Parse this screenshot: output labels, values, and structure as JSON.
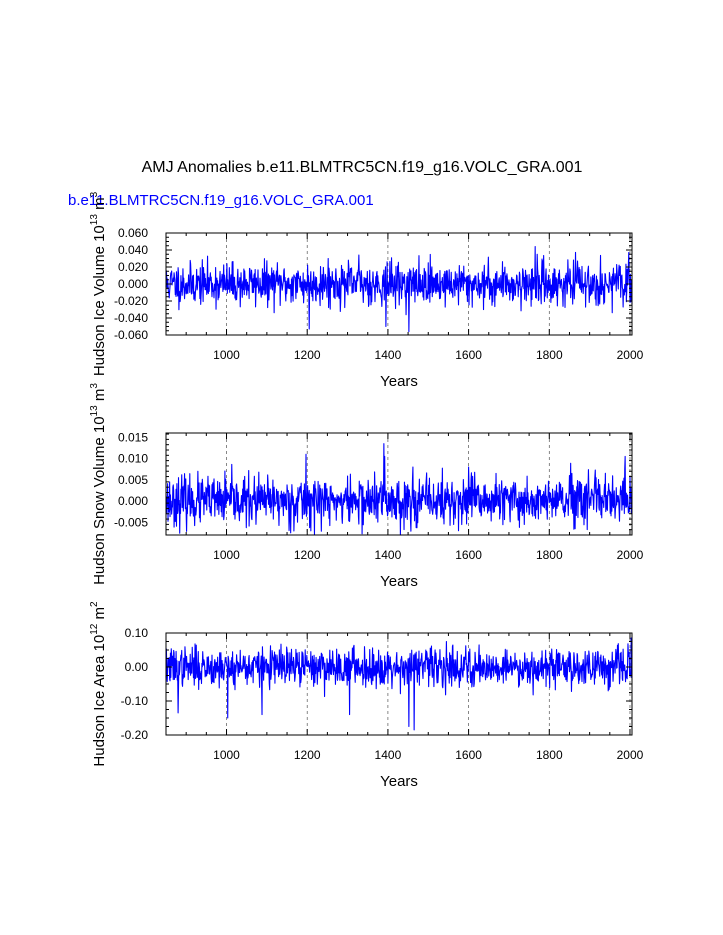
{
  "title": "AMJ Anomalies b.e11.BLMTRC5CN.f19_g16.VOLC_GRA.001",
  "subtitle": "b.e11.BLMTRC5CN.f19_g16.VOLC_GRA.001",
  "colors": {
    "series": "#0000ff",
    "subtitle": "#0000ff",
    "axis": "#000000",
    "grid": "#555555"
  },
  "chart_data": [
    {
      "type": "line",
      "ylabel_text": "Hudson Ice Volume 10",
      "ylabel_exp": "13",
      "ylabel_unit": "m",
      "ylabel_unit_exp": "3",
      "xlabel": "Years",
      "xlim": [
        850,
        2005
      ],
      "ylim": [
        -0.06,
        0.06
      ],
      "xticks": [
        1000,
        1200,
        1400,
        1600,
        1800,
        2000
      ],
      "yticks": [
        -0.06,
        -0.04,
        -0.02,
        0.0,
        0.02,
        0.04,
        0.06
      ],
      "ytick_labels": [
        "-0.060",
        "-0.040",
        "-0.020",
        "0.000",
        "0.020",
        "0.040",
        "0.060"
      ],
      "grid": "vertical-dashed",
      "series_seed": 11,
      "series_sigma": 0.012,
      "series_spikes": [
        [
          1205,
          -0.053
        ],
        [
          1252,
          0.03
        ],
        [
          1328,
          0.034
        ],
        [
          1395,
          -0.05
        ],
        [
          1452,
          -0.056
        ],
        [
          1500,
          0.025
        ],
        [
          1765,
          0.044
        ],
        [
          1770,
          0.035
        ],
        [
          1870,
          0.027
        ]
      ]
    },
    {
      "type": "line",
      "ylabel_text": "Hudson Snow Volume 10",
      "ylabel_exp": "13",
      "ylabel_unit": "m",
      "ylabel_unit_exp": "3",
      "xlabel": "Years",
      "xlim": [
        850,
        2005
      ],
      "ylim": [
        -0.008,
        0.016
      ],
      "xticks": [
        1000,
        1200,
        1400,
        1600,
        1800,
        2000
      ],
      "yticks": [
        -0.005,
        0.0,
        0.005,
        0.01,
        0.015
      ],
      "ytick_labels": [
        "-0.005",
        "0.000",
        "0.005",
        "0.010",
        "0.015"
      ],
      "grid": "vertical-dashed",
      "series_seed": 23,
      "series_sigma": 0.0028,
      "series_spikes": [
        [
          1197,
          0.011
        ],
        [
          1390,
          0.0135
        ],
        [
          1392,
          0.0105
        ],
        [
          1462,
          0.008
        ],
        [
          1600,
          0.008
        ],
        [
          1988,
          0.0105
        ],
        [
          1575,
          -0.007
        ]
      ]
    },
    {
      "type": "line",
      "ylabel_text": "Hudson Ice Area 10",
      "ylabel_exp": "12",
      "ylabel_unit": "m",
      "ylabel_unit_exp": "2",
      "xlabel": "Years",
      "xlim": [
        850,
        2005
      ],
      "ylim": [
        -0.2,
        0.1
      ],
      "xticks": [
        1000,
        1200,
        1400,
        1600,
        1800,
        2000
      ],
      "yticks": [
        -0.2,
        -0.1,
        0.0,
        0.1
      ],
      "ytick_labels": [
        "-0.20",
        "-0.10",
        "0.00",
        "0.10"
      ],
      "grid": "vertical-dashed",
      "series_seed": 37,
      "series_sigma": 0.028,
      "series_spikes": [
        [
          880,
          -0.135
        ],
        [
          1003,
          -0.15
        ],
        [
          1088,
          -0.14
        ],
        [
          1305,
          -0.14
        ],
        [
          1452,
          -0.175
        ],
        [
          1465,
          -0.185
        ],
        [
          1545,
          0.075
        ],
        [
          2003,
          0.085
        ]
      ]
    }
  ]
}
